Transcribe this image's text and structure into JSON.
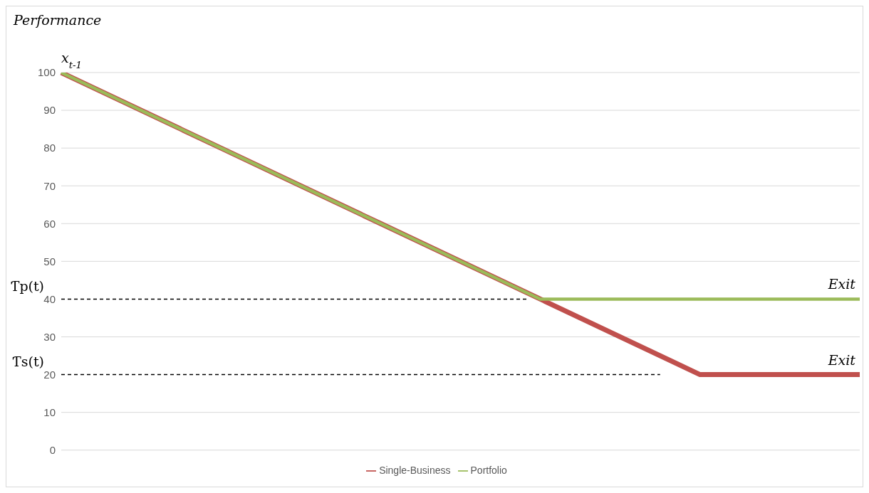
{
  "chart_data": {
    "type": "line",
    "ylabel": "Performance",
    "categories": [
      null,
      null,
      null,
      null,
      null,
      null
    ],
    "series": [
      {
        "name": "Single-Business",
        "color": "#c0504d",
        "values": [
          100,
          80,
          60,
          40,
          20,
          20
        ]
      },
      {
        "name": "Portfolio",
        "color": "#9bbb59",
        "values": [
          100,
          80,
          60,
          40,
          40,
          40
        ]
      }
    ],
    "ylim": [
      0,
      100
    ],
    "yticks": [
      0,
      10,
      20,
      30,
      40,
      50,
      60,
      70,
      80,
      90,
      100
    ],
    "grid": "y",
    "legend": "bottom",
    "tick_labels": "y",
    "marker": "none",
    "line_style": "solid",
    "ref_lines": [
      {
        "axis": "y",
        "value": 40,
        "label": "Ƭp(t)",
        "color": "#000000",
        "line_style": "dashed"
      },
      {
        "axis": "y",
        "value": 20,
        "label": "Ƭs(t)",
        "color": "#000000",
        "line_style": "dashed"
      }
    ],
    "annotations": [
      {
        "text": "x$_{t-1}$",
        "y": 100
      },
      {
        "text": "Exit",
        "y": 40
      },
      {
        "text": "Exit",
        "y": 20
      }
    ]
  }
}
